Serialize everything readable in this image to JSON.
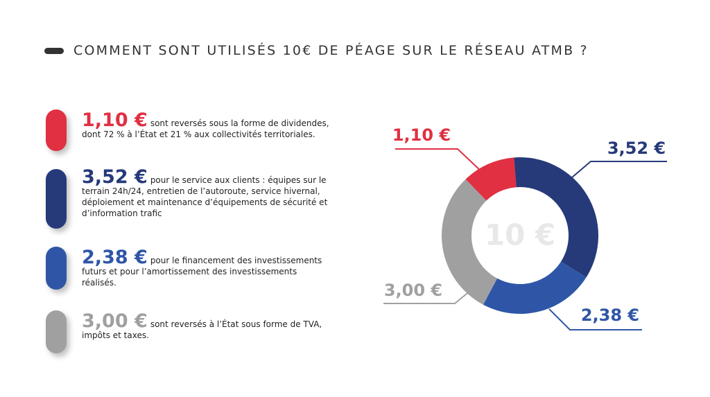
{
  "chart_data": {
    "type": "donut",
    "title": "COMMENT SONT UTILISÉS 10€ DE PÉAGE SUR LE RÉSEAU ATMB ?",
    "center_label": "10 €",
    "values": [
      1.1,
      3.52,
      2.38,
      3.0
    ],
    "value_labels": [
      "1,10 €",
      "3,52 €",
      "2,38 €",
      "3,00 €"
    ],
    "colors": [
      "#e03042",
      "#263a7a",
      "#2f56a6",
      "#a0a0a0"
    ],
    "descriptions": [
      "sont reversés sous la forme de dividendes, dont 72 % à l’État et 21 % aux collectivités territoriales.",
      "pour le service aux clients : équipes sur le terrain 24h/24, entretien de l’autoroute, service hivernal, déploiement et maintenance d’équipements de sécurité et d’information trafic",
      "pour le financement des investissements futurs et pour l’amortissement des investissements réalisés.",
      "sont reversés à l’État sous forme de TVA, impôts et taxes."
    ]
  }
}
